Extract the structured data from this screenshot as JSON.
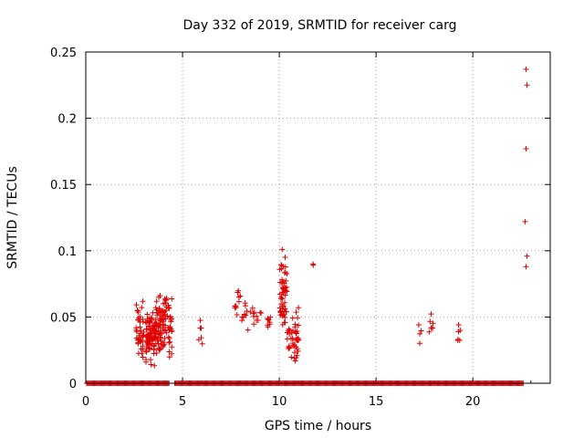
{
  "chart_data": {
    "type": "scatter",
    "title": "Day 332 of 2019, SRMTID for receiver carg",
    "xlabel": "GPS time / hours",
    "ylabel": "SRMTID / TECUs",
    "xlim": [
      0,
      24
    ],
    "ylim": [
      0,
      0.25
    ],
    "xticks": [
      0,
      5,
      10,
      15,
      20
    ],
    "xtick_labels": [
      "0",
      "5",
      "10",
      "15",
      "20"
    ],
    "yticks": [
      0,
      0.05,
      0.1,
      0.15,
      0.2,
      0.25
    ],
    "ytick_labels": [
      "0",
      "0.05",
      "0.1",
      "0.15",
      "0.2",
      "0.25"
    ],
    "grid": true,
    "marker": "+",
    "color": "#e00000",
    "baseline": {
      "value": 0,
      "ranges": [
        [
          0.05,
          4.3
        ],
        [
          4.6,
          22.6
        ]
      ],
      "step": 0.05
    },
    "clusters": [
      {
        "x": [
          2.6,
          3.0
        ],
        "y": [
          0.013,
          0.064
        ],
        "n": 40
      },
      {
        "x": [
          3.1,
          3.6
        ],
        "y": [
          0.012,
          0.058
        ],
        "n": 90
      },
      {
        "x": [
          3.6,
          4.2
        ],
        "y": [
          0.018,
          0.072
        ],
        "n": 90
      },
      {
        "x": [
          4.2,
          4.45
        ],
        "y": [
          0.014,
          0.068
        ],
        "n": 25
      },
      {
        "x": [
          5.8,
          6.05
        ],
        "y": [
          0.023,
          0.053
        ],
        "n": 6
      },
      {
        "x": [
          7.7,
          8.0
        ],
        "y": [
          0.05,
          0.073
        ],
        "n": 10
      },
      {
        "x": [
          8.0,
          8.7
        ],
        "y": [
          0.038,
          0.064
        ],
        "n": 14
      },
      {
        "x": [
          8.7,
          9.1
        ],
        "y": [
          0.045,
          0.06
        ],
        "n": 6
      },
      {
        "x": [
          9.3,
          9.6
        ],
        "y": [
          0.038,
          0.052
        ],
        "n": 8
      },
      {
        "x": [
          10.0,
          10.4
        ],
        "y": [
          0.033,
          0.1
        ],
        "n": 55
      },
      {
        "x": [
          10.4,
          11.0
        ],
        "y": [
          0.015,
          0.06
        ],
        "n": 45
      },
      {
        "x": [
          11.7,
          11.8
        ],
        "y": [
          0.088,
          0.091
        ],
        "n": 2
      },
      {
        "x": [
          17.2,
          17.35
        ],
        "y": [
          0.023,
          0.051
        ],
        "n": 4
      },
      {
        "x": [
          17.7,
          17.95
        ],
        "y": [
          0.036,
          0.055
        ],
        "n": 7
      },
      {
        "x": [
          19.2,
          19.35
        ],
        "y": [
          0.028,
          0.05
        ],
        "n": 6
      }
    ],
    "points": [
      [
        22.75,
        0.237
      ],
      [
        22.8,
        0.225
      ],
      [
        22.75,
        0.177
      ],
      [
        22.7,
        0.122
      ],
      [
        22.8,
        0.096
      ],
      [
        22.75,
        0.088
      ],
      [
        10.15,
        0.101
      ],
      [
        10.3,
        0.095
      ]
    ]
  }
}
